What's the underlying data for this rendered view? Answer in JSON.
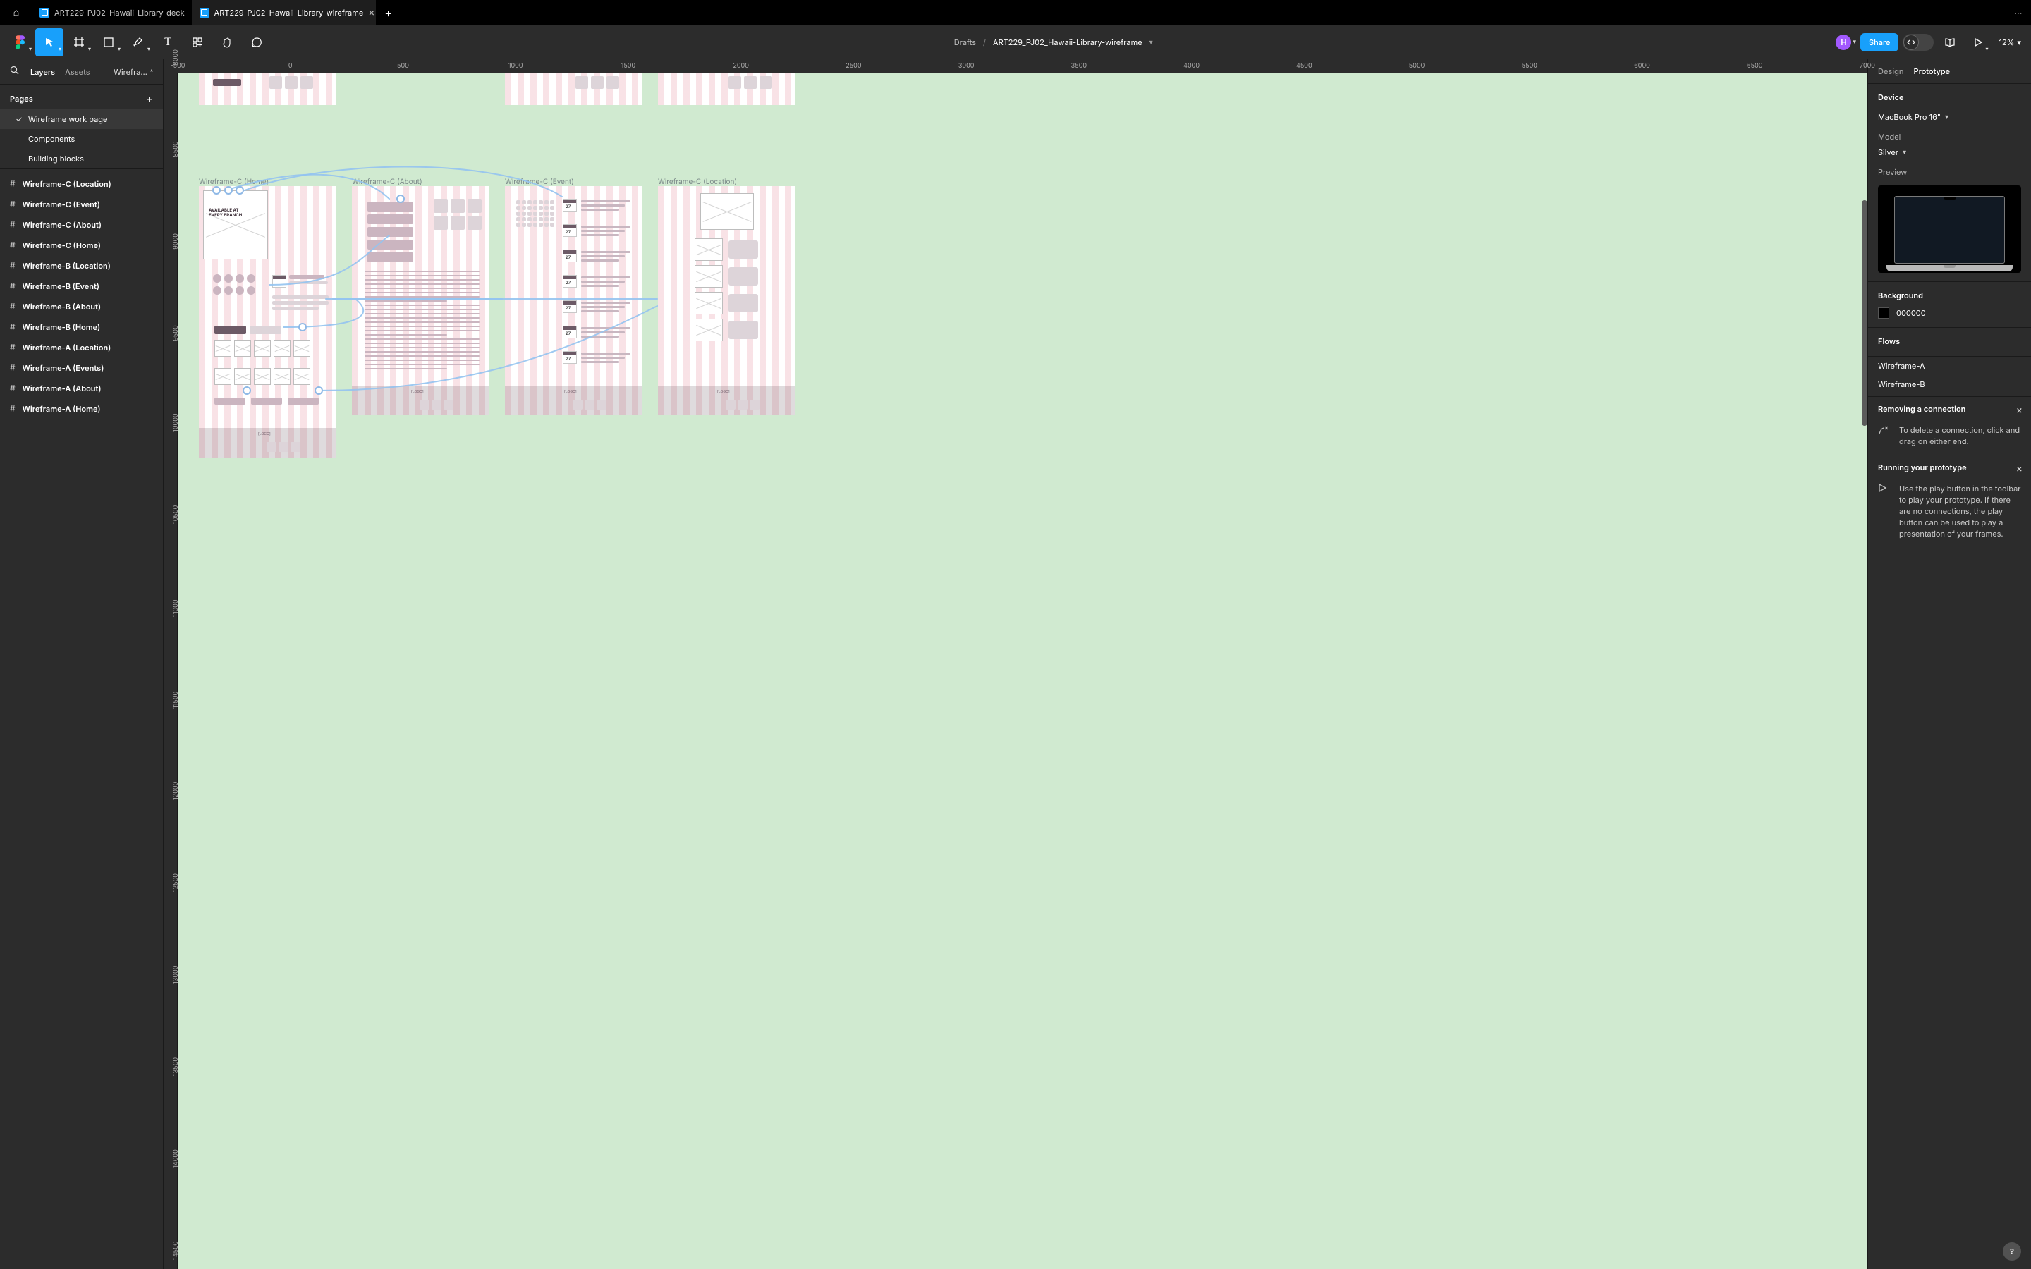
{
  "tabs": {
    "home_icon": "⌂",
    "items": [
      {
        "label": "ART229_PJ02_Hawaii-Library-deck",
        "active": false
      },
      {
        "label": "ART229_PJ02_Hawaii-Library-wireframe",
        "active": true
      }
    ],
    "overflow_icon": "⋯"
  },
  "toolbar": {
    "breadcrumb_root": "Drafts",
    "filename": "ART229_PJ02_Hawaii-Library-wireframe",
    "avatar_initial": "H",
    "share_label": "Share",
    "zoom_label": "12%"
  },
  "left_panel": {
    "tabs": {
      "layers": "Layers",
      "assets": "Assets"
    },
    "crumb": "Wirefra…",
    "pages_label": "Pages",
    "pages": [
      {
        "label": "Wireframe work page",
        "selected": true
      },
      {
        "label": "Components",
        "selected": false
      },
      {
        "label": "Building blocks",
        "selected": false
      }
    ],
    "layers": [
      "Wireframe-C (Location)",
      "Wireframe-C (Event)",
      "Wireframe-C (About)",
      "Wireframe-C (Home)",
      "Wireframe-B (Location)",
      "Wireframe-B (Event)",
      "Wireframe-B (About)",
      "Wireframe-B (Home)",
      "Wireframe-A (Location)",
      "Wireframe-A (Events)",
      "Wireframe-A (About)",
      "Wireframe-A (Home)"
    ]
  },
  "right_panel": {
    "tabs": {
      "design": "Design",
      "prototype": "Prototype"
    },
    "device_label": "Device",
    "device_value": "MacBook Pro 16\"",
    "model_label": "Model",
    "model_value": "Silver",
    "preview_label": "Preview",
    "background_label": "Background",
    "background_value": "000000",
    "flows_label": "Flows",
    "flows": [
      "Wireframe-A",
      "Wireframe-B"
    ],
    "hint1_title": "Removing a connection",
    "hint1_body": "To delete a connection, click and drag on either end.",
    "hint2_title": "Running your prototype",
    "hint2_body": "Use the play button in the toolbar to play your prototype. If there are no connections, the play button can be used to play a presentation of your frames."
  },
  "canvas": {
    "ruler_top": [
      "-500",
      "0",
      "500",
      "1000",
      "1500",
      "2000",
      "2500",
      "3000",
      "3500",
      "4000",
      "4500",
      "5000",
      "5500",
      "6000",
      "6500",
      "7000"
    ],
    "ruler_left": [
      "8000",
      "8500",
      "9000",
      "9500",
      "10000",
      "10500",
      "11000",
      "11500",
      "12000",
      "12500",
      "13000",
      "13500",
      "14000",
      "14500"
    ],
    "frame_labels": {
      "home": "Wireframe-C (Home)",
      "about": "Wireframe-C (About)",
      "event": "Wireframe-C (Event)",
      "location": "Wireframe-C (Location)"
    },
    "hero_text": "AVAILABLE AT\nEVERY BRANCH",
    "logo_text": "[LOGO]",
    "colors": {
      "stage_bg": "#d0ead0",
      "stripe": "#efb6c0",
      "block": "#cbb5c0",
      "block_dark": "#6c5a66",
      "noodle": "#93c3f0"
    }
  },
  "help_label": "?"
}
